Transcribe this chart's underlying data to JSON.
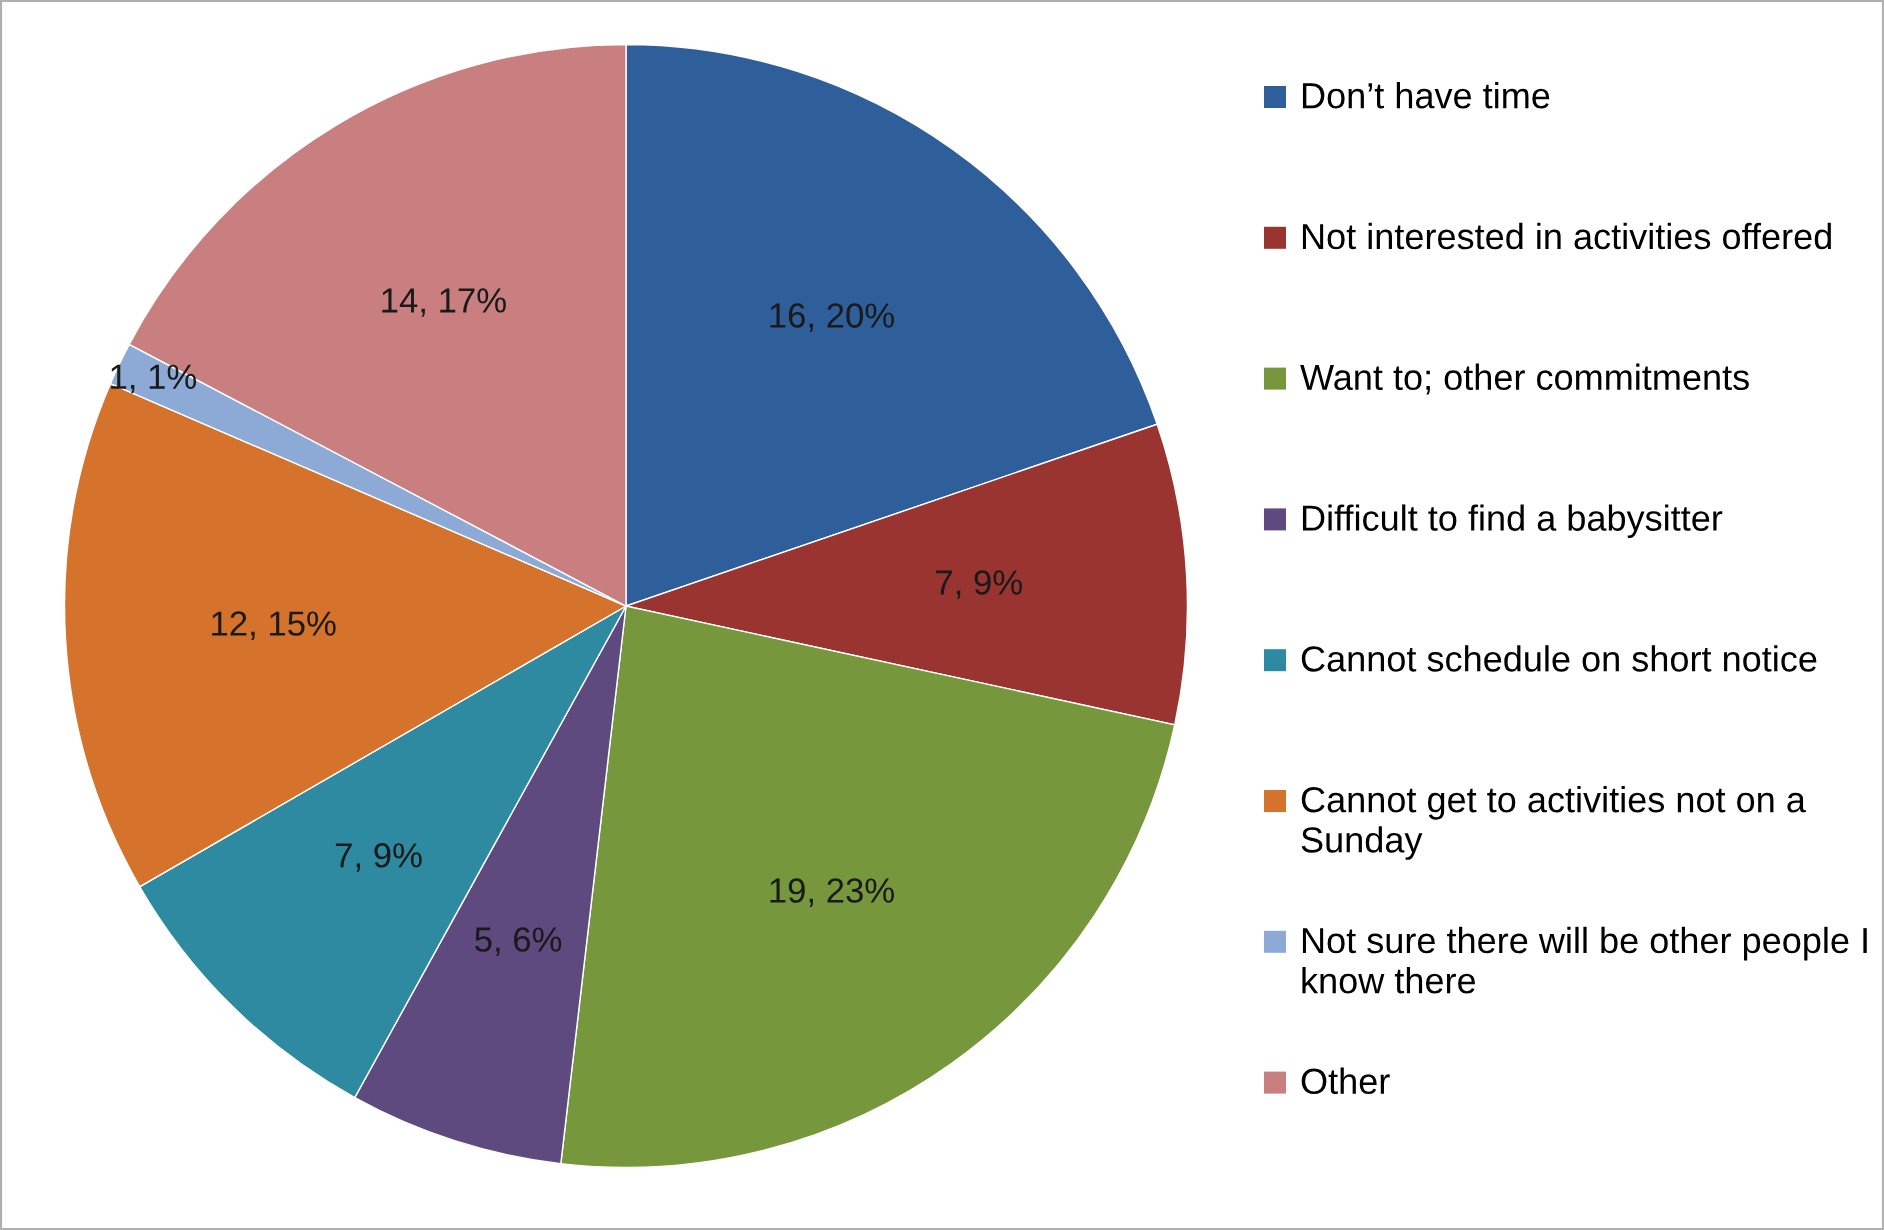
{
  "chart_data": {
    "type": "pie",
    "categories": [
      "Don’t have time",
      "Not interested in activities offered",
      "Want to; other commitments",
      "Difficult to find a babysitter",
      "Cannot schedule on short notice",
      "Cannot get to activities not on a Sunday",
      "Not sure there will be other people I know there",
      "Other"
    ],
    "values": [
      16,
      7,
      19,
      5,
      7,
      12,
      1,
      14
    ],
    "value_labels": [
      "16, 20%",
      "7, 9%",
      "19, 23%",
      "5, 6%",
      "7, 9%",
      "12, 15%",
      "1, 1%",
      "14, 17%"
    ],
    "colors": [
      "#2e5f9a",
      "#9a3430",
      "#77973d",
      "#5e4a7e",
      "#2e8aa0",
      "#d5722b",
      "#8da9d6",
      "#c97f7f"
    ],
    "legend": "right"
  }
}
